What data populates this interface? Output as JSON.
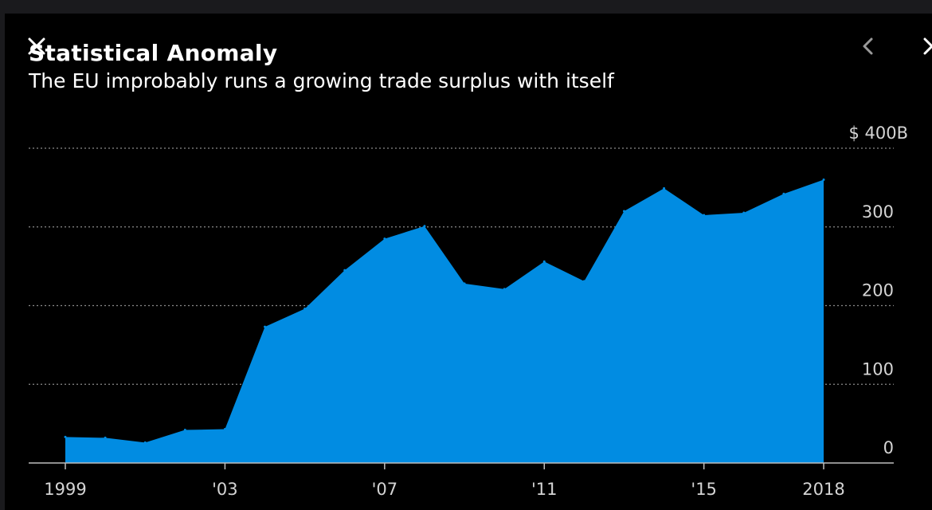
{
  "header": {
    "title": "Statistical Anomaly",
    "subtitle": "The EU improbably runs a growing trade surplus with itself"
  },
  "controls": {
    "close_icon": "close-icon",
    "prev_icon": "chevron-left-icon",
    "next_icon": "close-icon"
  },
  "colors": {
    "background": "#000000",
    "area_fill": "#018ce2",
    "gridline": "#8a8a8a",
    "baseline": "#bdbdbd",
    "tick_text": "#d4d4d4"
  },
  "chart_data": {
    "type": "area",
    "x": [
      1999,
      2000,
      2001,
      2002,
      2003,
      2004,
      2005,
      2006,
      2007,
      2008,
      2009,
      2010,
      2011,
      2012,
      2013,
      2014,
      2015,
      2016,
      2017,
      2018
    ],
    "values": [
      33,
      32,
      26,
      42,
      43,
      173,
      196,
      245,
      285,
      301,
      228,
      221,
      256,
      231,
      320,
      349,
      315,
      318,
      342,
      360
    ],
    "title": "Statistical Anomaly",
    "subtitle": "The EU improbably runs a growing trade surplus with itself",
    "ylim": [
      0,
      400
    ],
    "xlim": [
      1999,
      2018
    ],
    "y_ticks": [
      {
        "value": 400,
        "label": "$ 400B"
      },
      {
        "value": 300,
        "label": "300"
      },
      {
        "value": 200,
        "label": "200"
      },
      {
        "value": 100,
        "label": "100"
      },
      {
        "value": 0,
        "label": "0"
      }
    ],
    "x_ticks": [
      {
        "value": 1999,
        "label": "1999"
      },
      {
        "value": 2003,
        "label": "'03"
      },
      {
        "value": 2007,
        "label": "'07"
      },
      {
        "value": 2011,
        "label": "'11"
      },
      {
        "value": 2015,
        "label": "'15"
      },
      {
        "value": 2018,
        "label": "2018"
      }
    ],
    "grid": true,
    "y_axis_position": "right"
  }
}
